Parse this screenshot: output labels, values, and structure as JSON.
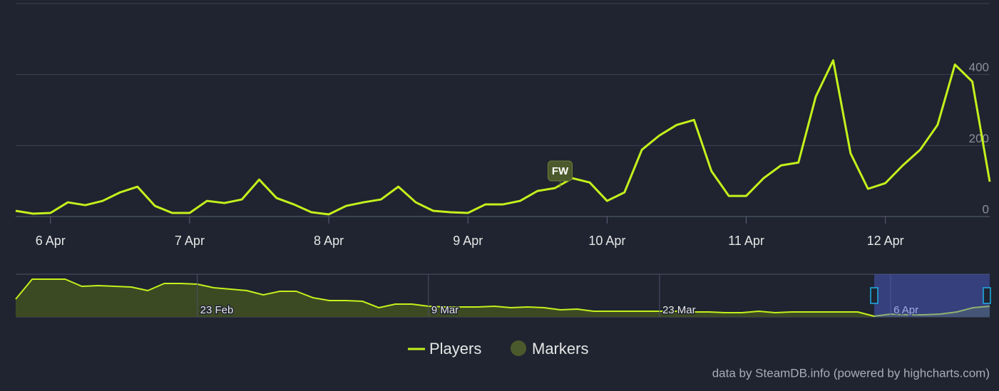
{
  "chart_data": [
    {
      "type": "line",
      "categories": [
        null,
        null,
        "6 Apr",
        null,
        null,
        null,
        null,
        null,
        null,
        null,
        "7 Apr",
        null,
        null,
        null,
        null,
        null,
        null,
        null,
        "8 Apr",
        null,
        null,
        null,
        null,
        null,
        null,
        null,
        "9 Apr",
        null,
        null,
        null,
        null,
        null,
        null,
        null,
        "10 Apr",
        null,
        null,
        null,
        null,
        null,
        null,
        null,
        "11 Apr",
        null,
        null,
        null,
        null,
        null,
        null,
        null,
        "12 Apr",
        null,
        null,
        null,
        null,
        null,
        null
      ],
      "series": [
        {
          "name": "Players",
          "color": "#c4f11c",
          "values": [
            16,
            8,
            10,
            40,
            32,
            44,
            68,
            84,
            30,
            10,
            10,
            44,
            38,
            48,
            104,
            52,
            34,
            12,
            6,
            30,
            40,
            48,
            84,
            40,
            16,
            12,
            10,
            34,
            34,
            44,
            72,
            80,
            108,
            96,
            44,
            68,
            188,
            228,
            258,
            272,
            128,
            58,
            58,
            108,
            144,
            152,
            338,
            440,
            178,
            78,
            94,
            144,
            188,
            258,
            428,
            380,
            98
          ]
        }
      ],
      "markers": {
        "name": "Markers",
        "color": "#4b5a2c",
        "labels": [
          "FW"
        ]
      },
      "ylim": [
        0,
        600
      ],
      "yticks": [
        0,
        200,
        400
      ],
      "grid": true
    },
    {
      "type": "area",
      "categories": [
        null,
        null,
        null,
        null,
        null,
        null,
        null,
        null,
        null,
        null,
        null,
        "23 Feb",
        null,
        null,
        null,
        null,
        null,
        null,
        null,
        null,
        null,
        null,
        null,
        null,
        null,
        "9 Mar",
        null,
        null,
        null,
        null,
        null,
        null,
        null,
        null,
        null,
        null,
        null,
        null,
        null,
        "23 Mar",
        null,
        null,
        null,
        null,
        null,
        null,
        null,
        null,
        null,
        null,
        null,
        null,
        null,
        "6 Apr",
        null,
        null,
        null,
        null,
        null,
        null
      ],
      "series": [
        {
          "name": "Players",
          "color": "#c4f11c",
          "values": [
            354,
            751,
            751,
            751,
            609,
            623,
            609,
            595,
            524,
            666,
            666,
            652,
            581,
            553,
            524,
            439,
            510,
            510,
            383,
            326,
            326,
            312,
            184,
            255,
            255,
            213,
            198,
            198,
            198,
            213,
            184,
            198,
            184,
            142,
            156,
            113,
            113,
            113,
            113,
            113,
            113,
            99,
            99,
            85,
            85,
            113,
            85,
            99,
            99,
            99,
            99,
            99,
            14,
            57,
            43,
            43,
            57,
            99,
            184,
            213
          ]
        }
      ],
      "ylim": [
        0,
        850
      ]
    }
  ],
  "credit": "data by SteamDB.info (powered by highcharts.com)"
}
